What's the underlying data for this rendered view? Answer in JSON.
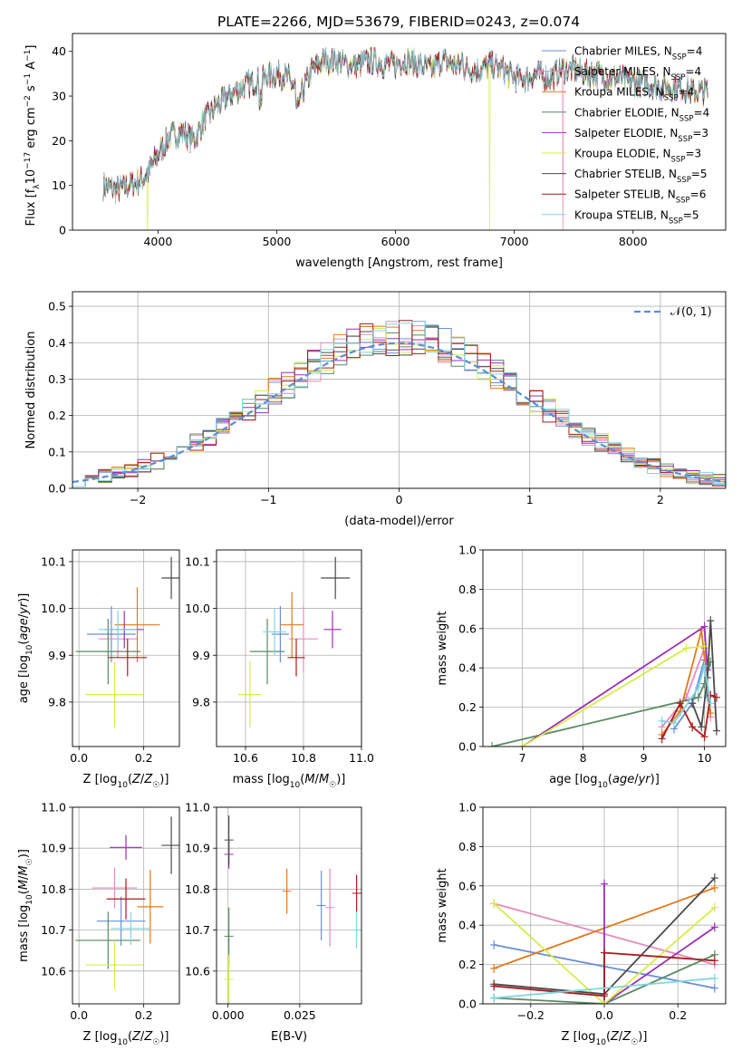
{
  "figure": {
    "suptitle": "PLATE=2266, MJD=53679, FIBERID=0243, z=0.074"
  },
  "colors": {
    "Chabrier MILES": "#6a8fd8",
    "Salpeter MILES": "#e58bbf",
    "Kroupa MILES": "#e07a1e",
    "Chabrier ELODIE": "#5a8a62",
    "Salpeter ELODIE": "#9b2fb8",
    "Kroupa ELODIE": "#d6ec48",
    "Chabrier STELIB": "#4a4a4a",
    "Salpeter STELIB": "#a81c1c",
    "Kroupa STELIB": "#7fd6e0",
    "normal_curve": "#5b8dd9",
    "grid": "#b0b0b0"
  },
  "chart_data": [
    {
      "id": "spectrum",
      "type": "line",
      "xlabel": "wavelength [Angstrom, rest frame]",
      "ylabel": "Flux [f_λ10^-17 erg cm^-2 s^-1 A^-1]",
      "xlim": [
        3280,
        8780
      ],
      "ylim": [
        0,
        44
      ],
      "xticks": [
        4000,
        5000,
        6000,
        7000,
        8000
      ],
      "yticks": [
        0,
        10,
        20,
        30,
        40
      ],
      "grid": false,
      "legend_position": "right",
      "legend": [
        {
          "name": "Chabrier MILES",
          "text": "Chabrier MILES, N",
          "sub": "SSP",
          "tail": "=4"
        },
        {
          "name": "Salpeter MILES",
          "text": "Salpeter MILES, N",
          "sub": "SSP",
          "tail": "=4"
        },
        {
          "name": "Kroupa MILES",
          "text": "Kroupa MILES, N",
          "sub": "SSP",
          "tail": "=4"
        },
        {
          "name": "Chabrier ELODIE",
          "text": "Chabrier ELODIE, N",
          "sub": "SSP",
          "tail": "=4"
        },
        {
          "name": "Salpeter ELODIE",
          "text": "Salpeter ELODIE, N",
          "sub": "SSP",
          "tail": "=3"
        },
        {
          "name": "Kroupa ELODIE",
          "text": "Kroupa ELODIE, N",
          "sub": "SSP",
          "tail": "=3"
        },
        {
          "name": "Chabrier STELIB",
          "text": "Chabrier STELIB, N",
          "sub": "SSP",
          "tail": "=5"
        },
        {
          "name": "Salpeter STELIB",
          "text": "Salpeter STELIB, N",
          "sub": "SSP",
          "tail": "=6"
        },
        {
          "name": "Kroupa STELIB",
          "text": "Kroupa STELIB, N",
          "sub": "SSP",
          "tail": "=5"
        }
      ],
      "continuum_x": [
        3540,
        3650,
        3750,
        3850,
        3920,
        4000,
        4100,
        4200,
        4300,
        4400,
        4500,
        4600,
        4700,
        4800,
        4900,
        5000,
        5100,
        5200,
        5300,
        5400,
        5500,
        5600,
        5700,
        5800,
        5900,
        6000,
        6100,
        6200,
        6300,
        6400,
        6500,
        6600,
        6700,
        6800,
        6900,
        7000,
        7100,
        7200,
        7300,
        7400,
        7500,
        7600,
        7700,
        7800,
        7900,
        8000,
        8100,
        8200,
        8300,
        8400,
        8500,
        8600
      ],
      "continuum_y": [
        10,
        9,
        10,
        11,
        13,
        17,
        21,
        22,
        20,
        25,
        28,
        30,
        32,
        33,
        34,
        35,
        34,
        30,
        36,
        38,
        38,
        37,
        37,
        38,
        37,
        37,
        38,
        37,
        36,
        38,
        37,
        36,
        36,
        37,
        36,
        34,
        34,
        35,
        34,
        36,
        36,
        35,
        35,
        34,
        34,
        33,
        33,
        32,
        32,
        32,
        31,
        31
      ],
      "drops": [
        {
          "name": "Kroupa ELODIE",
          "x": 3910
        },
        {
          "name": "Kroupa ELODIE",
          "x": 6790
        },
        {
          "name": "Salpeter MILES",
          "x": 7410
        }
      ]
    },
    {
      "id": "residuals",
      "type": "step",
      "xlabel": "(data-model)/error",
      "ylabel": "Normed distribution",
      "xlim": [
        -2.5,
        2.5
      ],
      "ylim": [
        0,
        0.54
      ],
      "xticks": [
        -2,
        -1,
        0,
        1,
        2
      ],
      "yticks": [
        0.0,
        0.1,
        0.2,
        0.3,
        0.4,
        0.5
      ],
      "grid": true,
      "legend_position": "top-right",
      "legend_label": "𝒩(0, 1)",
      "bin_width": 0.1
    },
    {
      "id": "z_age",
      "type": "errorbar",
      "xlabel": "Z [log10(Z/Z☉)]",
      "ylabel": "age [log10(age/yr)]",
      "xlim": [
        -0.02,
        0.31
      ],
      "ylim": [
        9.705,
        10.125
      ],
      "xticks": [
        0.0,
        0.2
      ],
      "yticks": [
        9.8,
        9.9,
        10.0,
        10.1
      ],
      "grid": true,
      "points": [
        {
          "name": "Chabrier MILES",
          "x": 0.1,
          "y": 9.945,
          "xe": 0.075,
          "ye": 0.06
        },
        {
          "name": "Salpeter MILES",
          "x": 0.12,
          "y": 9.935,
          "xe": 0.06,
          "ye": 0.04
        },
        {
          "name": "Kroupa MILES",
          "x": 0.18,
          "y": 9.965,
          "xe": 0.07,
          "ye": 0.08
        },
        {
          "name": "Chabrier ELODIE",
          "x": 0.09,
          "y": 9.908,
          "xe": 0.1,
          "ye": 0.07
        },
        {
          "name": "Salpeter ELODIE",
          "x": 0.14,
          "y": 9.955,
          "xe": 0.06,
          "ye": 0.04
        },
        {
          "name": "Kroupa ELODIE",
          "x": 0.11,
          "y": 9.816,
          "xe": 0.09,
          "ye": 0.07
        },
        {
          "name": "Chabrier STELIB",
          "x": 0.285,
          "y": 10.065,
          "xe": 0.03,
          "ye": 0.045
        },
        {
          "name": "Salpeter STELIB",
          "x": 0.15,
          "y": 9.895,
          "xe": 0.06,
          "ye": 0.04
        },
        {
          "name": "Kroupa STELIB",
          "x": 0.12,
          "y": 9.955,
          "xe": 0.06,
          "ye": 0.04
        }
      ]
    },
    {
      "id": "mass_age",
      "type": "errorbar",
      "xlabel": "mass [log10(M/M☉)]",
      "ylabel": "",
      "xlim": [
        10.5,
        11.0
      ],
      "ylim": [
        9.705,
        10.125
      ],
      "xticks": [
        10.6,
        10.8,
        11.0
      ],
      "yticks": [
        9.8,
        9.9,
        10.0,
        10.1
      ],
      "grid": true,
      "points": [
        {
          "name": "Chabrier MILES",
          "x": 10.72,
          "y": 9.945,
          "xe": 0.03,
          "ye": 0.06
        },
        {
          "name": "Salpeter MILES",
          "x": 10.8,
          "y": 9.935,
          "xe": 0.05,
          "ye": 0.07
        },
        {
          "name": "Kroupa MILES",
          "x": 10.76,
          "y": 9.965,
          "xe": 0.04,
          "ye": 0.07
        },
        {
          "name": "Chabrier ELODIE",
          "x": 10.675,
          "y": 9.908,
          "xe": 0.06,
          "ye": 0.07
        },
        {
          "name": "Salpeter ELODIE",
          "x": 10.9,
          "y": 9.955,
          "xe": 0.03,
          "ye": 0.04
        },
        {
          "name": "Kroupa ELODIE",
          "x": 10.615,
          "y": 9.816,
          "xe": 0.04,
          "ye": 0.07
        },
        {
          "name": "Chabrier STELIB",
          "x": 10.91,
          "y": 10.065,
          "xe": 0.05,
          "ye": 0.045
        },
        {
          "name": "Salpeter STELIB",
          "x": 10.775,
          "y": 9.895,
          "xe": 0.03,
          "ye": 0.04
        },
        {
          "name": "Kroupa STELIB",
          "x": 10.7,
          "y": 9.95,
          "xe": 0.04,
          "ye": 0.05
        }
      ]
    },
    {
      "id": "age_weight",
      "type": "line",
      "xlabel": "age [log10(age/yr)]",
      "ylabel": "mass weight",
      "xlim": [
        6.35,
        10.35
      ],
      "ylim": [
        0,
        1
      ],
      "xticks": [
        7,
        8,
        9,
        10
      ],
      "yticks": [
        0.0,
        0.2,
        0.4,
        0.6,
        0.8,
        1.0
      ],
      "grid": true,
      "series": [
        {
          "name": "Chabrier MILES",
          "points": [
            [
              9.5,
              0.09
            ],
            [
              9.8,
              0.22
            ],
            [
              10.0,
              0.44
            ],
            [
              10.05,
              0.25
            ]
          ]
        },
        {
          "name": "Salpeter MILES",
          "points": [
            [
              9.3,
              0.1
            ],
            [
              9.7,
              0.25
            ],
            [
              10.0,
              0.5
            ],
            [
              10.1,
              0.15
            ]
          ]
        },
        {
          "name": "Kroupa MILES",
          "points": [
            [
              9.3,
              0.06
            ],
            [
              9.6,
              0.18
            ],
            [
              9.95,
              0.59
            ],
            [
              10.1,
              0.17
            ]
          ]
        },
        {
          "name": "Chabrier ELODIE",
          "points": [
            [
              6.5,
              0.0
            ],
            [
              9.9,
              0.25
            ],
            [
              10.0,
              0.32
            ],
            [
              10.1,
              0.43
            ]
          ]
        },
        {
          "name": "Salpeter ELODIE",
          "points": [
            [
              7.0,
              0.0
            ],
            [
              10.0,
              0.61
            ],
            [
              10.05,
              0.39
            ]
          ]
        },
        {
          "name": "Kroupa ELODIE",
          "points": [
            [
              7.0,
              0.0
            ],
            [
              9.7,
              0.5
            ],
            [
              10.0,
              0.51
            ]
          ]
        },
        {
          "name": "Chabrier STELIB",
          "points": [
            [
              9.8,
              0.22
            ],
            [
              9.95,
              0.1
            ],
            [
              10.05,
              0.35
            ],
            [
              10.1,
              0.64
            ],
            [
              10.2,
              0.08
            ]
          ]
        },
        {
          "name": "Salpeter STELIB",
          "points": [
            [
              9.3,
              0.04
            ],
            [
              9.6,
              0.22
            ],
            [
              9.8,
              0.1
            ],
            [
              10.0,
              0.05
            ],
            [
              10.1,
              0.26
            ],
            [
              10.2,
              0.25
            ]
          ]
        },
        {
          "name": "Kroupa STELIB",
          "points": [
            [
              9.3,
              0.13
            ],
            [
              9.5,
              0.12
            ],
            [
              9.9,
              0.3
            ],
            [
              10.0,
              0.41
            ],
            [
              10.1,
              0.22
            ]
          ]
        }
      ]
    },
    {
      "id": "z_mass",
      "type": "errorbar",
      "xlabel": "Z [log10(Z/Z☉)]",
      "ylabel": "mass [log10(M/M☉)]",
      "xlim": [
        -0.02,
        0.31
      ],
      "ylim": [
        10.52,
        11.0
      ],
      "xticks": [
        0.0,
        0.2
      ],
      "yticks": [
        10.6,
        10.7,
        10.8,
        10.9,
        11.0
      ],
      "grid": true,
      "points": [
        {
          "name": "Chabrier MILES",
          "x": 0.13,
          "y": 10.722,
          "xe": 0.075,
          "ye": 0.06
        },
        {
          "name": "Salpeter MILES",
          "x": 0.11,
          "y": 10.803,
          "xe": 0.07,
          "ye": 0.05
        },
        {
          "name": "Kroupa MILES",
          "x": 0.22,
          "y": 10.757,
          "xe": 0.04,
          "ye": 0.09
        },
        {
          "name": "Chabrier ELODIE",
          "x": 0.09,
          "y": 10.675,
          "xe": 0.1,
          "ye": 0.07
        },
        {
          "name": "Salpeter ELODIE",
          "x": 0.145,
          "y": 10.902,
          "xe": 0.05,
          "ye": 0.03
        },
        {
          "name": "Kroupa ELODIE",
          "x": 0.11,
          "y": 10.615,
          "xe": 0.09,
          "ye": 0.06
        },
        {
          "name": "Chabrier STELIB",
          "x": 0.285,
          "y": 10.907,
          "xe": 0.03,
          "ye": 0.07
        },
        {
          "name": "Salpeter STELIB",
          "x": 0.145,
          "y": 10.776,
          "xe": 0.06,
          "ye": 0.05
        },
        {
          "name": "Kroupa STELIB",
          "x": 0.16,
          "y": 10.704,
          "xe": 0.06,
          "ye": 0.04
        }
      ]
    },
    {
      "id": "ebv_mass",
      "type": "errorbar",
      "xlabel": "E(B-V)",
      "ylabel": "",
      "xlim": [
        -0.004,
        0.0465
      ],
      "ylim": [
        10.52,
        11.0
      ],
      "xticks": [
        0.0,
        0.025
      ],
      "yticks": [
        10.6,
        10.7,
        10.8,
        10.9,
        11.0
      ],
      "grid": true,
      "points": [
        {
          "name": "Chabrier MILES",
          "x": 0.0325,
          "y": 10.76,
          "xe": 0,
          "ye": 0.085
        },
        {
          "name": "Salpeter MILES",
          "x": 0.0355,
          "y": 10.755,
          "xe": 0,
          "ye": 0.095
        },
        {
          "name": "Kroupa MILES",
          "x": 0.0205,
          "y": 10.795,
          "xe": 0,
          "ye": 0.055
        },
        {
          "name": "Chabrier ELODIE",
          "x": 0.0003,
          "y": 10.685,
          "xe": 0,
          "ye": 0.07
        },
        {
          "name": "Salpeter ELODIE",
          "x": 0.0003,
          "y": 10.885,
          "xe": 0,
          "ye": 0.035
        },
        {
          "name": "Kroupa ELODIE",
          "x": 0.0003,
          "y": 10.58,
          "xe": 0,
          "ye": 0.06
        },
        {
          "name": "Chabrier STELIB",
          "x": 0.0003,
          "y": 10.92,
          "xe": 0,
          "ye": 0.06
        },
        {
          "name": "Salpeter STELIB",
          "x": 0.0448,
          "y": 10.79,
          "xe": 0,
          "ye": 0.045
        },
        {
          "name": "Kroupa STELIB",
          "x": 0.0448,
          "y": 10.7,
          "xe": 0,
          "ye": 0.045
        }
      ]
    },
    {
      "id": "z_weight",
      "type": "line",
      "xlabel": "Z [log10(Z/Z☉)]",
      "ylabel": "mass weight",
      "xlim": [
        -0.33,
        0.33
      ],
      "ylim": [
        0,
        1
      ],
      "xticks": [
        -0.2,
        0.0,
        0.2
      ],
      "yticks": [
        0.0,
        0.2,
        0.4,
        0.6,
        0.8,
        1.0
      ],
      "grid": true,
      "series": [
        {
          "name": "Chabrier MILES",
          "points": [
            [
              -0.3,
              0.3
            ],
            [
              0.0,
              0.19
            ],
            [
              0.3,
              0.08
            ]
          ]
        },
        {
          "name": "Salpeter MILES",
          "points": [
            [
              -0.3,
              0.51
            ],
            [
              0.3,
              0.2
            ]
          ]
        },
        {
          "name": "Kroupa MILES",
          "points": [
            [
              -0.3,
              0.18
            ],
            [
              0.3,
              0.59
            ]
          ]
        },
        {
          "name": "Chabrier ELODIE",
          "points": [
            [
              -0.3,
              0.03
            ],
            [
              0.0,
              0.0
            ],
            [
              0.3,
              0.25
            ]
          ]
        },
        {
          "name": "Salpeter ELODIE",
          "points": [
            [
              0.0,
              0.61
            ],
            [
              0.0,
              0.0
            ],
            [
              0.3,
              0.39
            ]
          ]
        },
        {
          "name": "Kroupa ELODIE",
          "points": [
            [
              -0.3,
              0.51
            ],
            [
              0.0,
              0.0
            ],
            [
              0.3,
              0.49
            ]
          ]
        },
        {
          "name": "Chabrier STELIB",
          "points": [
            [
              -0.3,
              0.1
            ],
            [
              0.0,
              0.05
            ],
            [
              0.3,
              0.64
            ]
          ]
        },
        {
          "name": "Salpeter STELIB",
          "points": [
            [
              -0.3,
              0.09
            ],
            [
              0.0,
              0.04
            ],
            [
              0.0,
              0.26
            ],
            [
              0.3,
              0.22
            ]
          ]
        },
        {
          "name": "Kroupa STELIB",
          "points": [
            [
              -0.3,
              0.03
            ],
            [
              0.3,
              0.13
            ]
          ]
        }
      ]
    }
  ]
}
